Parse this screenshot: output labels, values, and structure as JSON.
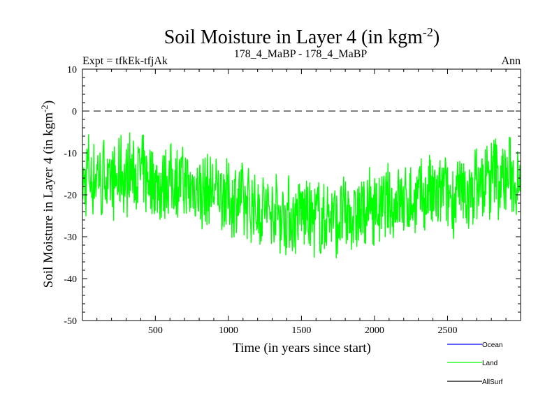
{
  "chart_data": {
    "type": "line",
    "title": "Soil Moisture in Layer 4 (in kgm",
    "title_sup": "-2",
    "title_close": ")",
    "subtitle_left": "Expt = tfkEk-tfjAk",
    "subtitle_center": "178_4_MaBP - 178_4_MaBP",
    "subtitle_right": "Ann",
    "xlabel": "Time (in years since start)",
    "ylabel": "Soil Moisture in Layer 4 (in kgm",
    "ylabel_sup": "-2",
    "ylabel_close": ")",
    "xlim": [
      1,
      3000
    ],
    "ylim": [
      -50,
      10
    ],
    "x_ticks": [
      500,
      1000,
      1500,
      2000,
      2500
    ],
    "y_ticks": [
      10,
      0,
      -10,
      -20,
      -30,
      -40,
      -50
    ],
    "reference_line": {
      "y": 0,
      "style": "dashed",
      "color": "#000000"
    },
    "legend_position": "bottom-right",
    "series": [
      {
        "name": "Ocean",
        "color": "#0000ff",
        "values": []
      },
      {
        "name": "Land",
        "color": "#00ff00",
        "x_step": 12,
        "values": [
          -16,
          -18,
          -17,
          -13,
          -14,
          -18,
          -16,
          -15,
          -16,
          -13,
          -17,
          -19,
          -15,
          -14,
          -17,
          -20,
          -17,
          -15,
          -18,
          -16,
          -17,
          -16,
          -14,
          -15,
          -16,
          -17,
          -15,
          -13,
          -15,
          -16,
          -15,
          -15,
          -15,
          -15,
          -15,
          -15,
          -17,
          -16,
          -15,
          -16,
          -17,
          -16,
          -18,
          -17,
          -17,
          -18,
          -18,
          -17,
          -16,
          -18,
          -16,
          -17,
          -17,
          -16,
          -16,
          -17,
          -17,
          -17,
          -18,
          -17,
          -18,
          -20,
          -19,
          -17,
          -19,
          -18,
          -19,
          -19,
          -19,
          -19,
          -19,
          -19,
          -19,
          -19,
          -19,
          -19,
          -20,
          -20,
          -18,
          -20,
          -20,
          -18,
          -21,
          -21,
          -20,
          -22,
          -22,
          -20,
          -21,
          -21,
          -21,
          -20,
          -24,
          -22,
          -21,
          -22,
          -24,
          -22,
          -22,
          -23,
          -24,
          -23,
          -24,
          -22,
          -22,
          -25,
          -23,
          -24,
          -25,
          -24,
          -23,
          -24,
          -24,
          -25,
          -25,
          -25,
          -25,
          -24,
          -24,
          -25,
          -27,
          -25,
          -25,
          -25,
          -24,
          -23,
          -25,
          -24,
          -25,
          -25,
          -25,
          -26,
          -27,
          -26,
          -25,
          -24,
          -27,
          -26,
          -27,
          -24,
          -25,
          -26,
          -24,
          -25,
          -25,
          -27,
          -26,
          -25,
          -26,
          -24,
          -26,
          -26,
          -24,
          -24,
          -25,
          -26,
          -26,
          -24,
          -24,
          -26,
          -25,
          -24,
          -22,
          -24,
          -23,
          -22,
          -23,
          -23,
          -23,
          -23,
          -24,
          -24,
          -23,
          -23,
          -22,
          -22,
          -22,
          -23,
          -24,
          -20,
          -21,
          -22,
          -21,
          -23,
          -23,
          -21,
          -21,
          -21,
          -22,
          -23,
          -21,
          -22,
          -21,
          -20,
          -20,
          -21,
          -22,
          -19,
          -18,
          -21,
          -22,
          -20,
          -19,
          -22,
          -20,
          -20,
          -18,
          -19,
          -21,
          -20,
          -20,
          -21,
          -21,
          -20,
          -19,
          -21,
          -20,
          -21,
          -19,
          -20,
          -20,
          -21,
          -21,
          -18,
          -17,
          -18,
          -18,
          -18,
          -17,
          -19,
          -16,
          -16,
          -18,
          -16,
          -16,
          -14,
          -14,
          -17,
          -17,
          -16,
          -17,
          -15,
          -17,
          -15,
          -14,
          -17,
          -16,
          -17,
          -16,
          -12,
          -16,
          -18,
          -16,
          -13
        ]
      },
      {
        "name": "AllSurf",
        "color": "#000000",
        "values": []
      }
    ]
  }
}
